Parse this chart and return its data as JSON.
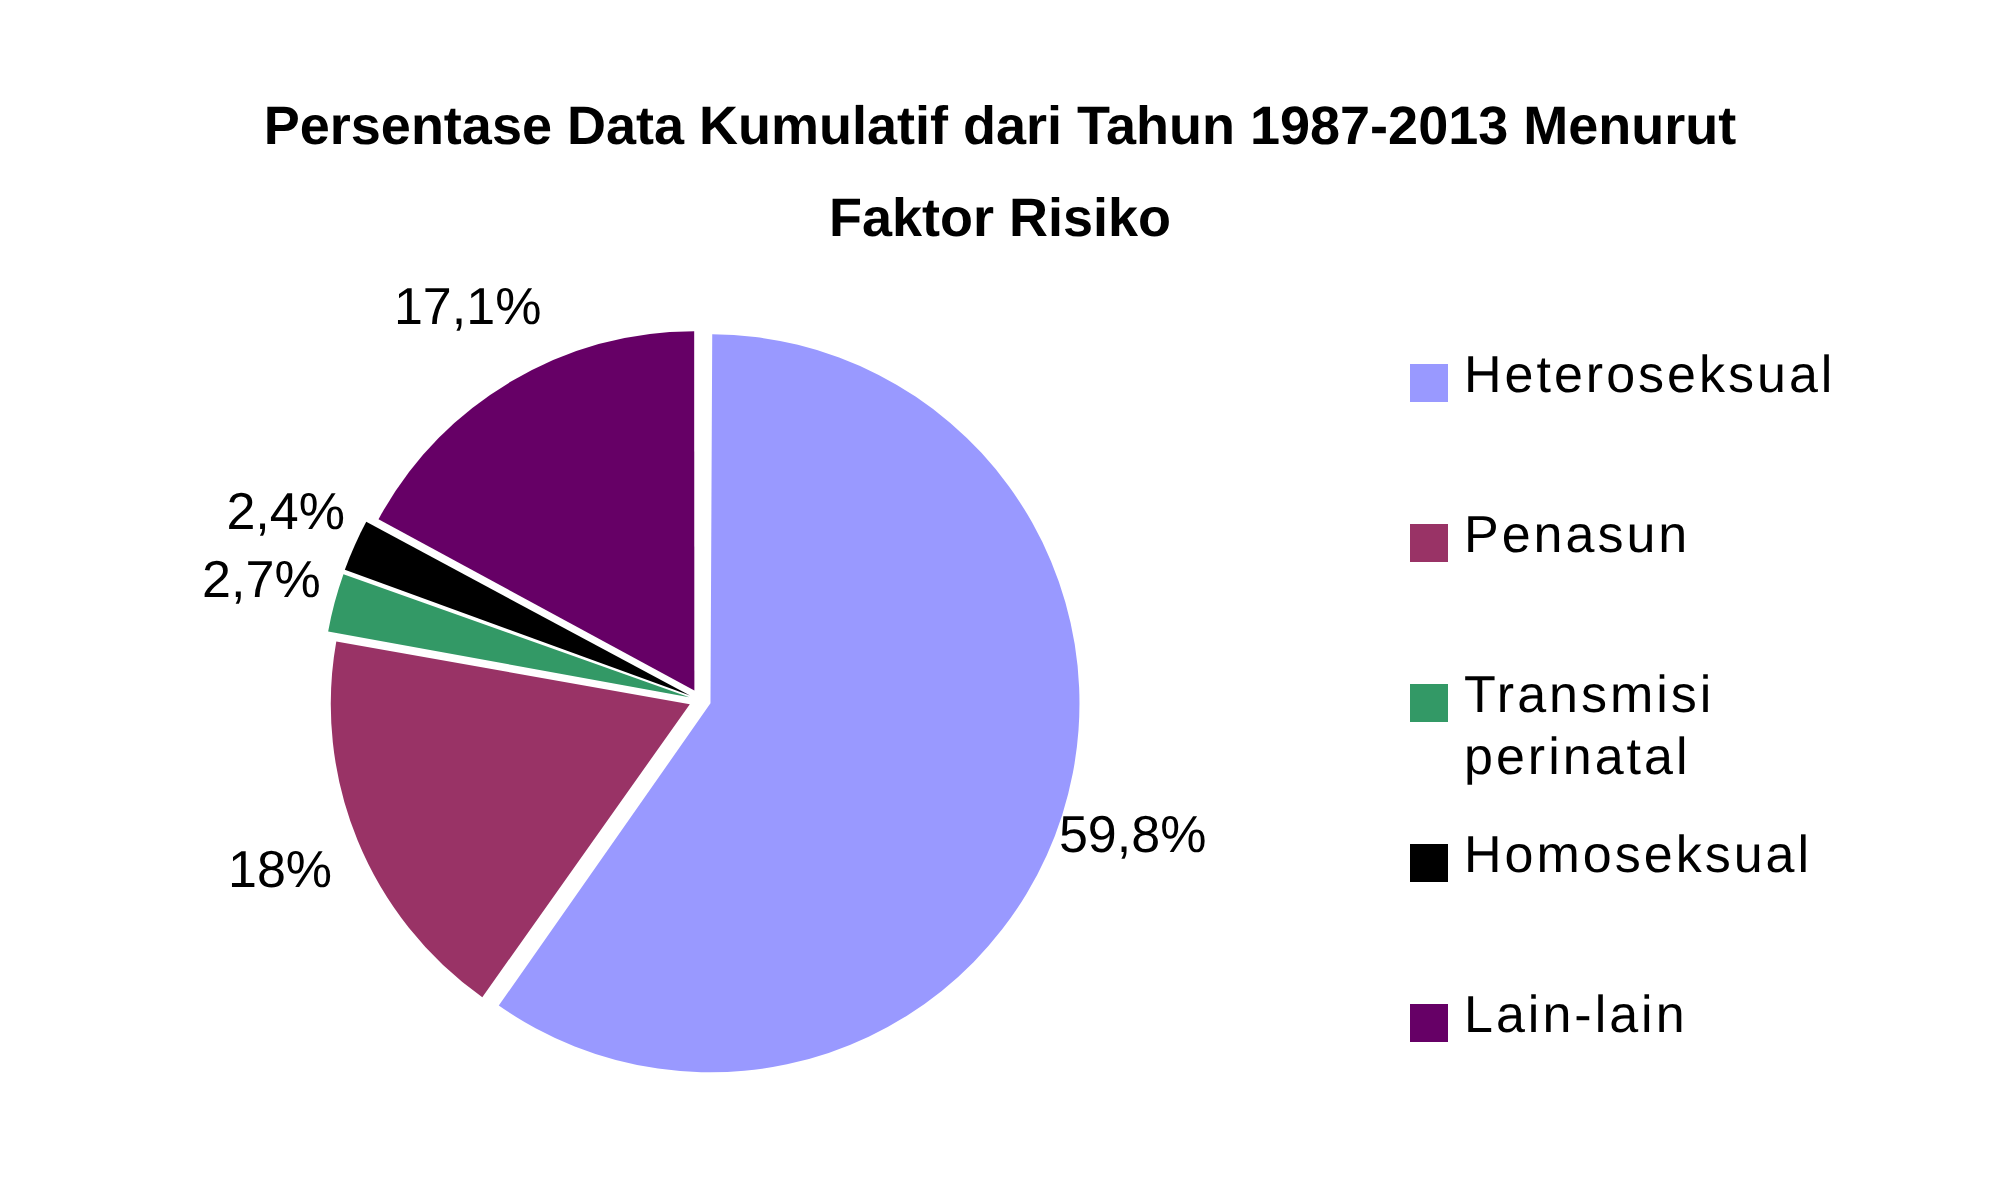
{
  "chart_data": {
    "type": "pie",
    "title": "Persentase Data Kumulatif dari Tahun 1987-2013 Menurut Faktor  Risiko",
    "categories": [
      "Heteroseksual",
      "Penasun",
      "Transmisi perinatal",
      "Homoseksual",
      "Lain-lain"
    ],
    "values": [
      59.8,
      18,
      2.7,
      2.4,
      17.1
    ],
    "colors": [
      "#9999ff",
      "#993366",
      "#339966",
      "#000000",
      "#660066"
    ],
    "value_labels": [
      "59,8%",
      "18%",
      "2,7%",
      "2,4%",
      "17,1%"
    ],
    "legend": "right"
  }
}
